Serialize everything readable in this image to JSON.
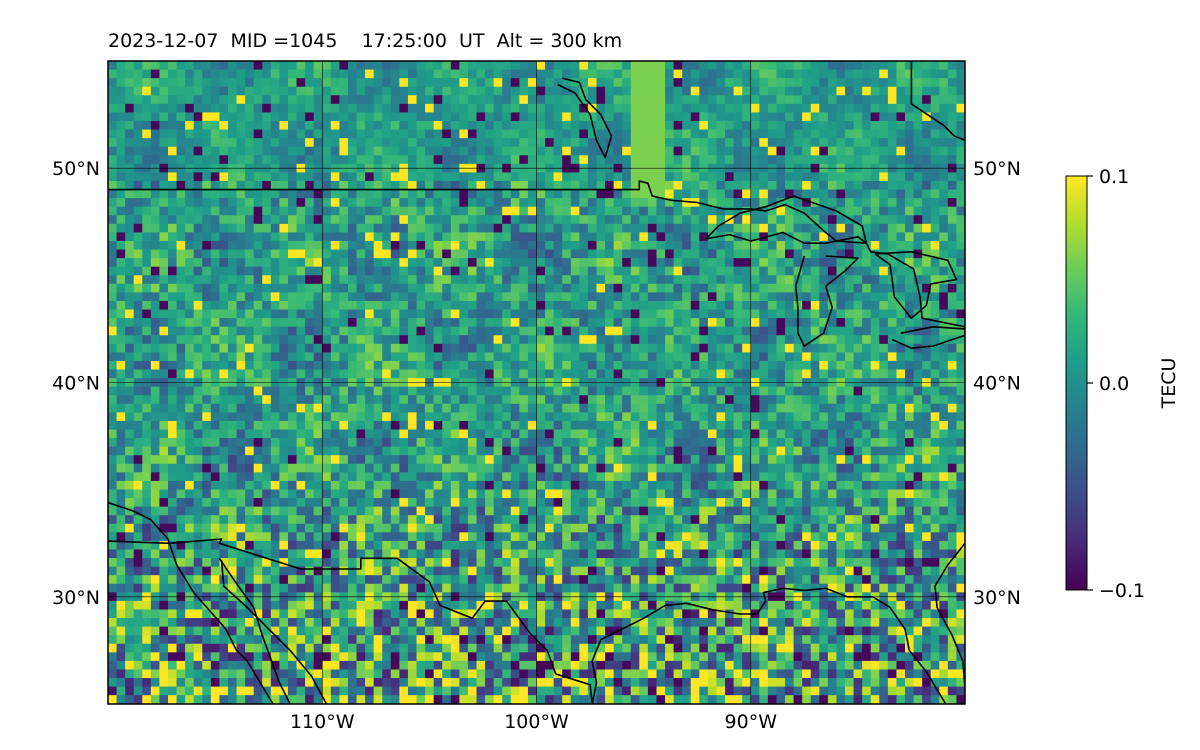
{
  "title": "2023-12-07  MID =1045    17:25:00  UT  Alt = 300 km",
  "map": {
    "extent": {
      "lon": [
        -120,
        -80
      ],
      "lat": [
        25,
        55
      ]
    },
    "lat_gridlines": [
      30,
      40,
      50
    ],
    "lon_gridlines": [
      -110,
      -100,
      -90
    ],
    "lat_labels": [
      "30°N",
      "40°N",
      "50°N"
    ],
    "lon_labels": [
      "110°W",
      "100°W",
      "90°W"
    ],
    "lat_label_values": [
      30,
      40,
      50
    ],
    "lon_label_values": [
      -110,
      -100,
      -90
    ],
    "colormap": "viridis",
    "features": {
      "border_us_canada": [
        [
          -120,
          49
        ],
        [
          -95.2,
          49
        ],
        [
          -95.2,
          49.4
        ],
        [
          -94.8,
          49.3
        ],
        [
          -94.6,
          48.7
        ],
        [
          -93.7,
          48.5
        ],
        [
          -92.5,
          48.4
        ],
        [
          -91.3,
          48.1
        ],
        [
          -90.0,
          48.1
        ],
        [
          -89.3,
          48.0
        ],
        [
          -88.4,
          48.3
        ],
        [
          -87.5,
          47.9
        ],
        [
          -86.5,
          47.0
        ],
        [
          -86.0,
          46.6
        ],
        [
          -84.6,
          46.5
        ],
        [
          -84.4,
          46.1
        ],
        [
          -83.6,
          46.0
        ],
        [
          -82.4,
          45.3
        ],
        [
          -82.1,
          44.0
        ],
        [
          -82.0,
          43.0
        ],
        [
          -81.0,
          42.8
        ],
        [
          -80,
          42.6
        ]
      ],
      "mexico_border": [
        [
          -120,
          32.6
        ],
        [
          -117.1,
          32.5
        ],
        [
          -114.7,
          32.7
        ],
        [
          -114.8,
          32.5
        ],
        [
          -111.0,
          31.3
        ],
        [
          -108.2,
          31.3
        ],
        [
          -108.2,
          31.8
        ],
        [
          -106.5,
          31.8
        ],
        [
          -105.0,
          30.7
        ],
        [
          -104.5,
          29.6
        ],
        [
          -103.0,
          29.0
        ],
        [
          -102.4,
          29.8
        ],
        [
          -101.4,
          29.8
        ],
        [
          -100.3,
          28.3
        ],
        [
          -99.5,
          27.5
        ],
        [
          -99.1,
          26.4
        ],
        [
          -97.5,
          25.9
        ],
        [
          -97.4,
          25
        ]
      ],
      "pacific_coast": [
        [
          -120,
          34.4
        ],
        [
          -118.8,
          34.0
        ],
        [
          -118.0,
          33.6
        ],
        [
          -117.2,
          32.7
        ],
        [
          -116.8,
          31.5
        ],
        [
          -116.0,
          30.2
        ],
        [
          -114.5,
          28.5
        ],
        [
          -114.0,
          27.5
        ],
        [
          -113.5,
          27.0
        ],
        [
          -112.3,
          25
        ]
      ],
      "gulf_california_east": [
        [
          -114.7,
          31.7
        ],
        [
          -114.6,
          30.5
        ],
        [
          -113.5,
          29.5
        ],
        [
          -112.5,
          28.5
        ],
        [
          -111.5,
          27.5
        ],
        [
          -110.5,
          26.3
        ],
        [
          -109.8,
          25
        ]
      ],
      "baja_inner": [
        [
          -114.8,
          31.8
        ],
        [
          -114.2,
          30.9
        ],
        [
          -113.2,
          29.5
        ],
        [
          -112.8,
          28.2
        ],
        [
          -112.0,
          26.0
        ],
        [
          -111.5,
          25
        ]
      ],
      "gulf_coast": [
        [
          -97.4,
          25
        ],
        [
          -97.2,
          26.0
        ],
        [
          -97.4,
          27.0
        ],
        [
          -97.0,
          28.0
        ],
        [
          -95.0,
          29.0
        ],
        [
          -94.0,
          29.6
        ],
        [
          -93.0,
          29.7
        ],
        [
          -91.8,
          29.4
        ],
        [
          -90.5,
          29.2
        ],
        [
          -89.7,
          29.2
        ],
        [
          -89.3,
          29.8
        ],
        [
          -89.4,
          30.2
        ],
        [
          -88.5,
          30.4
        ],
        [
          -87.5,
          30.3
        ],
        [
          -86.5,
          30.4
        ],
        [
          -85.5,
          30.0
        ],
        [
          -84.3,
          30.0
        ],
        [
          -83.5,
          29.5
        ],
        [
          -82.8,
          28.5
        ],
        [
          -82.6,
          27.5
        ],
        [
          -81.8,
          26.5
        ],
        [
          -81.2,
          25.5
        ],
        [
          -80.9,
          25
        ]
      ],
      "atlantic_coast": [
        [
          -80,
          32.5
        ],
        [
          -80.8,
          31.5
        ],
        [
          -81.4,
          30.5
        ],
        [
          -81.3,
          29.5
        ],
        [
          -80.6,
          28.2
        ],
        [
          -80.1,
          27.0
        ],
        [
          -80,
          25.7
        ]
      ],
      "hudson_bay_edge": [
        [
          -82.5,
          55
        ],
        [
          -82.5,
          53.0
        ],
        [
          -81.0,
          52.0
        ],
        [
          -80.5,
          51.5
        ],
        [
          -80,
          51.3
        ]
      ],
      "lake_winnipeg": [
        [
          -99.0,
          53.9
        ],
        [
          -98.2,
          53.5
        ],
        [
          -97.5,
          52.5
        ],
        [
          -97.2,
          51.3
        ],
        [
          -96.8,
          50.5
        ],
        [
          -96.5,
          51.5
        ],
        [
          -97.0,
          52.5
        ],
        [
          -97.7,
          53.2
        ],
        [
          -98.0,
          54.0
        ],
        [
          -98.8,
          54.2
        ]
      ],
      "lake_superior": [
        [
          -92.1,
          46.7
        ],
        [
          -91.0,
          46.9
        ],
        [
          -90.0,
          46.6
        ],
        [
          -88.5,
          47.0
        ],
        [
          -87.5,
          46.5
        ],
        [
          -86.5,
          46.5
        ],
        [
          -85.0,
          46.8
        ],
        [
          -84.6,
          46.5
        ],
        [
          -84.8,
          47.3
        ],
        [
          -86.0,
          48.0
        ],
        [
          -88.0,
          48.7
        ],
        [
          -89.3,
          48.2
        ],
        [
          -90.5,
          47.9
        ],
        [
          -91.5,
          47.3
        ],
        [
          -92.1,
          46.7
        ]
      ],
      "lake_michigan": [
        [
          -87.5,
          45.9
        ],
        [
          -87.9,
          44.5
        ],
        [
          -87.8,
          43.5
        ],
        [
          -87.8,
          42.3
        ],
        [
          -87.5,
          41.7
        ],
        [
          -86.6,
          42.3
        ],
        [
          -86.2,
          43.5
        ],
        [
          -86.5,
          44.5
        ],
        [
          -85.6,
          45.2
        ],
        [
          -85.0,
          45.8
        ],
        [
          -86.5,
          45.9
        ]
      ],
      "lake_huron": [
        [
          -84.2,
          46.0
        ],
        [
          -83.5,
          45.5
        ],
        [
          -83.4,
          44.8
        ],
        [
          -83.3,
          44.0
        ],
        [
          -82.5,
          43.0
        ],
        [
          -81.8,
          43.6
        ],
        [
          -81.6,
          44.6
        ],
        [
          -80.4,
          44.8
        ],
        [
          -80.8,
          45.7
        ],
        [
          -82.5,
          46.1
        ],
        [
          -84.2,
          46.0
        ]
      ],
      "lake_erie": [
        [
          -83.4,
          42.0
        ],
        [
          -82.5,
          41.6
        ],
        [
          -81.5,
          41.7
        ],
        [
          -80,
          42.2
        ],
        [
          -80,
          42.5
        ],
        [
          -81.5,
          42.6
        ],
        [
          -83.0,
          42.3
        ]
      ]
    }
  },
  "colorbar": {
    "label": "TECU",
    "ticks": [
      0.1,
      0.0,
      -0.1
    ],
    "tick_labels": [
      "0.1",
      "0.0",
      "−0.1"
    ],
    "min": -0.1,
    "max": 0.1,
    "colormap": "viridis"
  }
}
